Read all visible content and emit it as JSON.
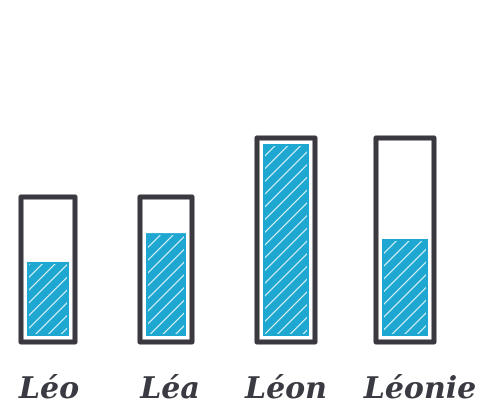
{
  "figure": {
    "items": [
      {
        "label": "Léo",
        "fill_fraction": 0.55
      },
      {
        "label": "Léa",
        "fill_fraction": 0.77
      },
      {
        "label": "Léon",
        "fill_fraction": 1.0
      },
      {
        "label": "Léonie",
        "fill_fraction": 0.5
      }
    ],
    "colors": {
      "outline": "#3b3840",
      "fill": "#1ea7d0",
      "hatch": "#e8f7fc",
      "text": "#3a3a42"
    }
  }
}
